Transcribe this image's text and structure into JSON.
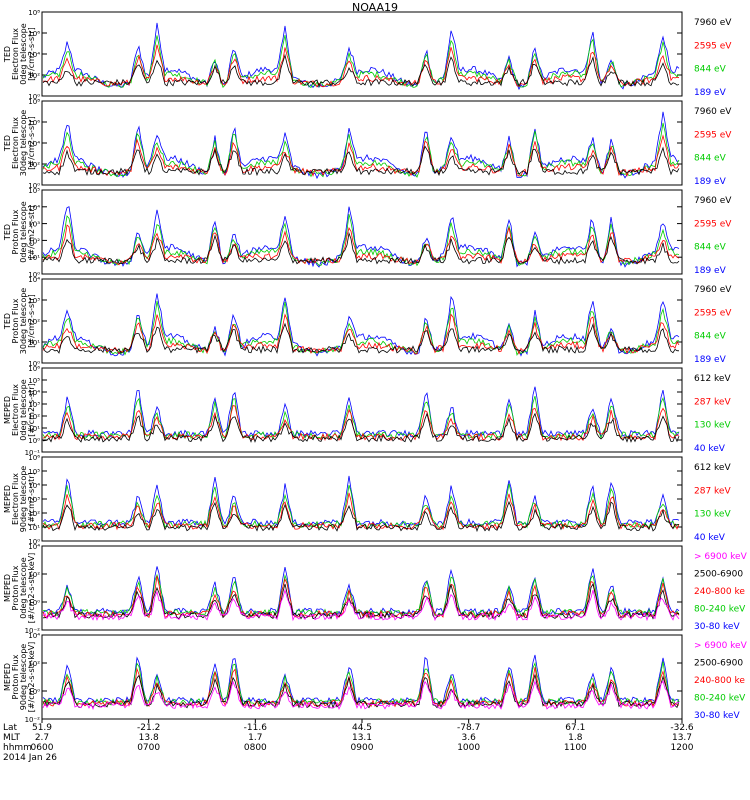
{
  "chart_data": {
    "type": "line",
    "title": "NOAA19",
    "date": "2014 Jan 26",
    "x_axis": {
      "row_labels": [
        "Lat",
        "MLT",
        "hhmm"
      ],
      "ticks": [
        {
          "Lat": "51.9",
          "MLT": "2.7",
          "hhmm": "0600"
        },
        {
          "Lat": "-21.2",
          "MLT": "13.8",
          "hhmm": "0700"
        },
        {
          "Lat": "-11.6",
          "MLT": "1.7",
          "hhmm": "0800"
        },
        {
          "Lat": "44.5",
          "MLT": "13.1",
          "hhmm": "0900"
        },
        {
          "Lat": "-78.7",
          "MLT": "3.6",
          "hhmm": "1000"
        },
        {
          "Lat": "67.1",
          "MLT": "1.8",
          "hhmm": "1100"
        },
        {
          "Lat": "-32.6",
          "MLT": "13.7",
          "hhmm": "1200"
        }
      ]
    },
    "panels": [
      {
        "ylabel": [
          "TED",
          "Electron Flux",
          "0deg telescope",
          "[#/cm2-s-str]"
        ],
        "yticks": [
          "10⁰",
          "10²",
          "10⁴",
          "10⁶",
          "10⁸"
        ],
        "log_range": [
          0,
          8
        ],
        "series": [
          {
            "name": "7960 eV",
            "color": "#000000"
          },
          {
            "name": "2595 eV",
            "color": "#ff0000"
          },
          {
            "name": "844 eV",
            "color": "#00cc00"
          },
          {
            "name": "189 eV",
            "color": "#0000ff"
          }
        ]
      },
      {
        "ylabel": [
          "TED",
          "Electron Flux",
          "30deg telescope",
          "[#/cm2-s-str]"
        ],
        "yticks": [
          "10⁰",
          "10²",
          "10⁴",
          "10⁶",
          "10⁸"
        ],
        "log_range": [
          0,
          8
        ],
        "series": [
          {
            "name": "7960 eV",
            "color": "#000000"
          },
          {
            "name": "2595 eV",
            "color": "#ff0000"
          },
          {
            "name": "844 eV",
            "color": "#00cc00"
          },
          {
            "name": "189 eV",
            "color": "#0000ff"
          }
        ]
      },
      {
        "ylabel": [
          "TED",
          "Proton Flux",
          "0deg telescope",
          "[#/cm2-s-str]"
        ],
        "yticks": [
          "10⁰",
          "10¹",
          "10²",
          "10³",
          "10⁴",
          "10⁵"
        ],
        "log_range": [
          0,
          5
        ],
        "series": [
          {
            "name": "7960 eV",
            "color": "#000000"
          },
          {
            "name": "2595 eV",
            "color": "#ff0000"
          },
          {
            "name": "844 eV",
            "color": "#00cc00"
          },
          {
            "name": "189 eV",
            "color": "#0000ff"
          }
        ]
      },
      {
        "ylabel": [
          "TED",
          "Proton Flux",
          "30deg telescope",
          "[#/cm2-s-str]"
        ],
        "yticks": [
          "10⁰",
          "10¹",
          "10²",
          "10³",
          "10⁴"
        ],
        "log_range": [
          0,
          4.5
        ],
        "series": [
          {
            "name": "7960 eV",
            "color": "#000000"
          },
          {
            "name": "2595 eV",
            "color": "#ff0000"
          },
          {
            "name": "844 eV",
            "color": "#00cc00"
          },
          {
            "name": "189 eV",
            "color": "#0000ff"
          }
        ]
      },
      {
        "ylabel": [
          "MEPED",
          "Electron Flux",
          "0deg telescope",
          "[#/cm2-s-str]"
        ],
        "yticks": [
          "10⁻¹",
          "10⁰",
          "10¹",
          "10²",
          "10³",
          "10⁴",
          "10⁵",
          "10⁶"
        ],
        "log_range": [
          -1,
          6.2
        ],
        "series": [
          {
            "name": "612 keV",
            "color": "#000000"
          },
          {
            "name": "287 keV",
            "color": "#ff0000"
          },
          {
            "name": "130 keV",
            "color": "#00cc00"
          },
          {
            "name": "40 keV",
            "color": "#0000ff"
          }
        ]
      },
      {
        "ylabel": [
          "MEPED",
          "Electron Flux",
          "90deg telescope",
          "[#/cm2-s-str]"
        ],
        "yticks": [
          "10⁰",
          "10¹",
          "10²",
          "10³",
          "10⁴",
          "10⁵",
          "10⁶"
        ],
        "log_range": [
          0,
          6.5
        ],
        "series": [
          {
            "name": "612 keV",
            "color": "#000000"
          },
          {
            "name": "287 keV",
            "color": "#ff0000"
          },
          {
            "name": "130 keV",
            "color": "#00cc00"
          },
          {
            "name": "40 keV",
            "color": "#0000ff"
          }
        ]
      },
      {
        "ylabel": [
          "MEPED",
          "Proton Flux",
          "0deg telescope",
          "[#/cm2-s-str-keV]"
        ],
        "yticks": [
          "10⁻²",
          "10⁰",
          "10²",
          "10⁴"
        ],
        "log_range": [
          -3,
          5.2
        ],
        "series": [
          {
            "name": "> 6900 keV",
            "color": "#ff00ff"
          },
          {
            "name": "2500-6900",
            "color": "#000000"
          },
          {
            "name": "240-800 ke",
            "color": "#ff0000"
          },
          {
            "name": "80-240 keV",
            "color": "#00cc00"
          },
          {
            "name": "30-80 keV",
            "color": "#0000ff"
          }
        ]
      },
      {
        "ylabel": [
          "MEPED",
          "Proton Flux",
          "90deg telescope",
          "[#/cm2-s-str-keV]"
        ],
        "yticks": [
          "10⁻²",
          "10⁰",
          "10²",
          "10⁴"
        ],
        "log_range": [
          -3,
          5.2
        ],
        "series": [
          {
            "name": "> 6900 keV",
            "color": "#ff00ff"
          },
          {
            "name": "2500-6900",
            "color": "#000000"
          },
          {
            "name": "240-800 ke",
            "color": "#ff0000"
          },
          {
            "name": "80-240 keV",
            "color": "#00cc00"
          },
          {
            "name": "30-80 keV",
            "color": "#0000ff"
          }
        ]
      }
    ]
  }
}
